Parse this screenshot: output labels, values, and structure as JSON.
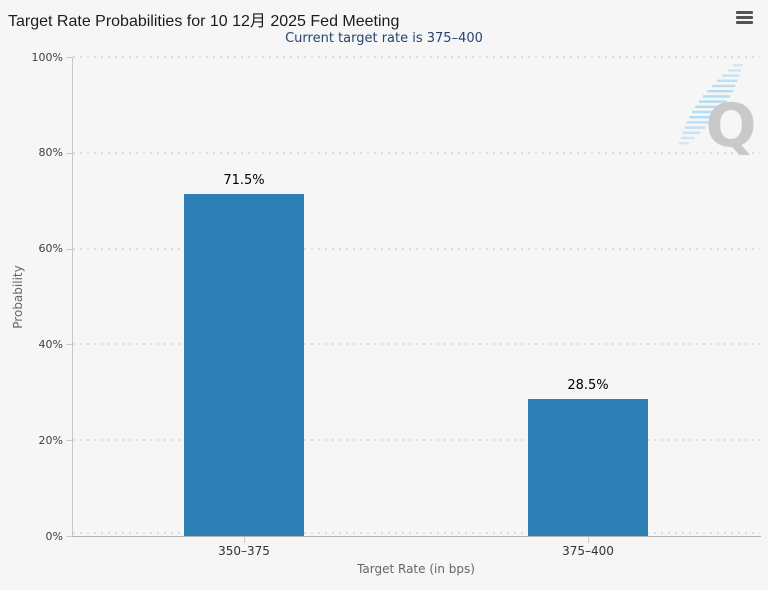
{
  "menu": {
    "icon": "hamburger-menu-icon"
  },
  "watermark": {
    "letter": "Q"
  },
  "colors": {
    "background": "#f6f6f6",
    "bar": "#2d7fb5",
    "subtitle_text": "#25456e",
    "grid_dot": "#dcdcdc",
    "axis_line": "#c9c9c9",
    "x_axis_line": "#b3b3b3",
    "watermark_letter": "#c9c9c9",
    "watermark_swoosh": "#a5d7f0"
  },
  "chart_data": {
    "type": "bar",
    "title": "Target Rate Probabilities for 10 12月 2025 Fed Meeting",
    "subtitle": "Current target rate is 375–400",
    "categories": [
      "350–375",
      "375–400"
    ],
    "values": [
      71.5,
      28.5
    ],
    "value_labels": [
      "71.5%",
      "28.5%"
    ],
    "xlabel": "Target Rate (in bps)",
    "ylabel": "Probability",
    "ylim": [
      0,
      100
    ],
    "ytick_step": 20,
    "ytick_labels": [
      "0%",
      "20%",
      "40%",
      "60%",
      "80%",
      "100%"
    ],
    "grid": "dotted-horizontal",
    "legend": "none",
    "bar_color": "#2d7fb5"
  }
}
